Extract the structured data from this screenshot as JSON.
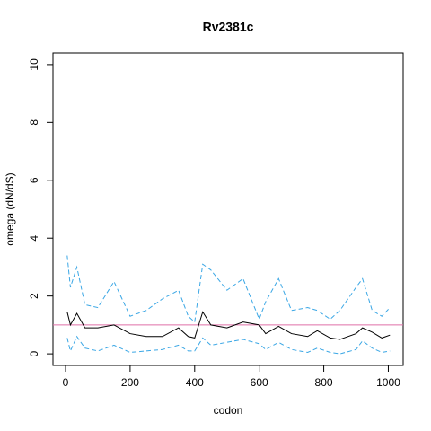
{
  "chart_data": {
    "type": "line",
    "title": "Rv2381c",
    "x_label": "codon",
    "y_label": "omega (dN/dS)",
    "x": [
      5,
      15,
      35,
      60,
      100,
      150,
      200,
      250,
      300,
      350,
      380,
      400,
      425,
      450,
      500,
      550,
      600,
      620,
      660,
      700,
      750,
      780,
      820,
      850,
      900,
      920,
      950,
      980,
      1005
    ],
    "series": [
      {
        "color": "#000000",
        "dash": false,
        "values": [
          1.45,
          1.0,
          1.4,
          0.9,
          0.9,
          1.0,
          0.7,
          0.6,
          0.6,
          0.9,
          0.6,
          0.55,
          1.45,
          1.0,
          0.9,
          1.1,
          1.0,
          0.7,
          0.95,
          0.7,
          0.6,
          0.8,
          0.55,
          0.5,
          0.7,
          0.9,
          0.75,
          0.55,
          0.65
        ]
      },
      {
        "color": "#3ba7e5",
        "dash": true,
        "values": [
          3.4,
          2.3,
          3.0,
          1.7,
          1.6,
          2.5,
          1.3,
          1.5,
          1.9,
          2.2,
          1.3,
          1.1,
          3.1,
          2.9,
          2.2,
          2.6,
          1.2,
          1.8,
          2.6,
          1.5,
          1.6,
          1.5,
          1.2,
          1.5,
          2.3,
          2.6,
          1.5,
          1.3,
          1.6
        ]
      },
      {
        "color": "#3ba7e5",
        "dash": true,
        "values": [
          0.55,
          0.1,
          0.6,
          0.2,
          0.1,
          0.3,
          0.05,
          0.1,
          0.15,
          0.3,
          0.1,
          0.1,
          0.55,
          0.3,
          0.4,
          0.5,
          0.35,
          0.15,
          0.4,
          0.15,
          0.05,
          0.2,
          0.05,
          0,
          0.15,
          0.45,
          0.2,
          0.05,
          0.1
        ]
      }
    ],
    "hline": {
      "value": 1,
      "color": "#df6fa6"
    },
    "xlim": [
      -39,
      1046
    ],
    "ylim": [
      -0.4,
      10.4
    ],
    "xticks": [
      0,
      200,
      400,
      600,
      800,
      1000
    ],
    "yticks": [
      0,
      2,
      4,
      6,
      8,
      10
    ]
  }
}
